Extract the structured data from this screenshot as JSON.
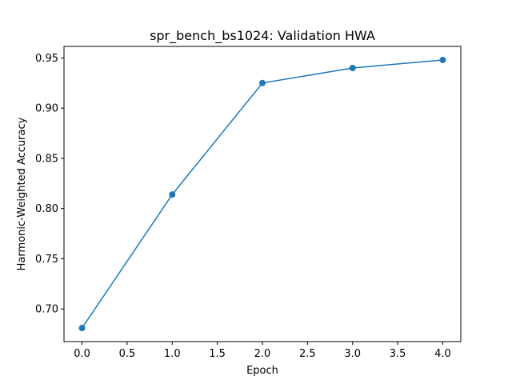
{
  "chart_data": {
    "type": "line",
    "title": "spr_bench_bs1024: Validation HWA",
    "xlabel": "Epoch",
    "ylabel": "Harmonic-Weighted Accuracy",
    "x": [
      0,
      1,
      2,
      3,
      4
    ],
    "series": [
      {
        "values": [
          0.681,
          0.814,
          0.925,
          0.94,
          0.948
        ],
        "color": "#1f77b4",
        "marker": "circle"
      }
    ],
    "xlim": [
      -0.2,
      4.2
    ],
    "ylim": [
      0.6675,
      0.9615
    ],
    "xticks": [
      0.0,
      0.5,
      1.0,
      1.5,
      2.0,
      2.5,
      3.0,
      3.5,
      4.0
    ],
    "xtick_labels": [
      "0.0",
      "0.5",
      "1.0",
      "1.5",
      "2.0",
      "2.5",
      "3.0",
      "3.5",
      "4.0"
    ],
    "yticks": [
      0.7,
      0.75,
      0.8,
      0.85,
      0.9,
      0.95
    ],
    "ytick_labels": [
      "0.70",
      "0.75",
      "0.80",
      "0.85",
      "0.90",
      "0.95"
    ],
    "grid": false,
    "legend": "none"
  }
}
